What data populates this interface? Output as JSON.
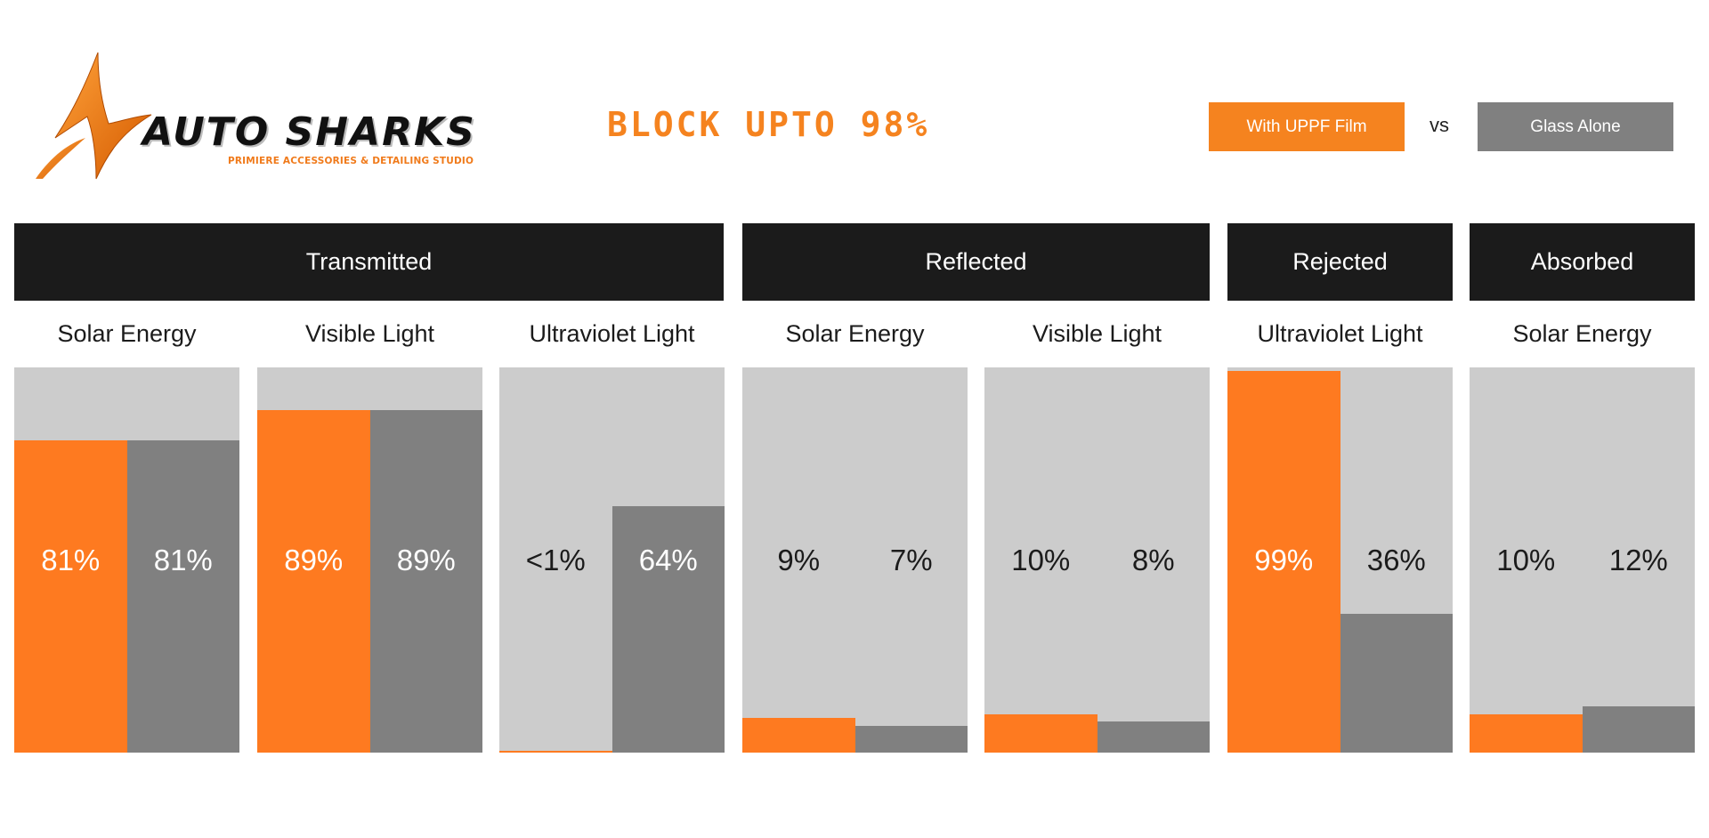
{
  "brand": {
    "name": "AUTO SHARKS",
    "tagline": "PRIMIERE ACCESSORIES & DETAILING STUDIO"
  },
  "headline": "BLOCK UPTO 98%",
  "legend": {
    "film_label": "With UPPF Film",
    "vs_label": "vs",
    "glass_label": "Glass Alone"
  },
  "colors": {
    "film": "#fe7a20",
    "glass": "#808080",
    "panel_bg": "#cccccc",
    "header_bg": "#1b1b1b",
    "accent": "#f5831f"
  },
  "chart_data": {
    "type": "bar",
    "ylim": [
      0,
      100
    ],
    "grid": false,
    "legend_position": "top-right",
    "series_names": [
      "With UPPF Film",
      "Glass Alone"
    ],
    "groups": [
      {
        "label": "Transmitted",
        "panels": [
          {
            "title": "Solar Energy",
            "film": 81,
            "glass": 81,
            "film_label": "81%",
            "glass_label": "81%"
          },
          {
            "title": "Visible Light",
            "film": 89,
            "glass": 89,
            "film_label": "89%",
            "glass_label": "89%"
          },
          {
            "title": "Ultraviolet Light",
            "film": 0.5,
            "glass": 64,
            "film_label": "<1%",
            "glass_label": "64%"
          }
        ]
      },
      {
        "label": "Reflected",
        "panels": [
          {
            "title": "Solar Energy",
            "film": 9,
            "glass": 7,
            "film_label": "9%",
            "glass_label": "7%"
          },
          {
            "title": "Visible Light",
            "film": 10,
            "glass": 8,
            "film_label": "10%",
            "glass_label": "8%"
          }
        ]
      },
      {
        "label": "Rejected",
        "panels": [
          {
            "title": "Ultraviolet Light",
            "film": 99,
            "glass": 36,
            "film_label": "99%",
            "glass_label": "36%"
          }
        ]
      },
      {
        "label": "Absorbed",
        "panels": [
          {
            "title": "Solar Energy",
            "film": 10,
            "glass": 12,
            "film_label": "10%",
            "glass_label": "12%"
          }
        ]
      }
    ]
  }
}
